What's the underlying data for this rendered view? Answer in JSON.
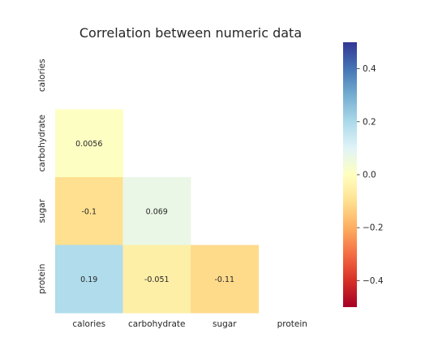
{
  "chart_data": {
    "type": "heatmap",
    "title": "Correlation between numeric data",
    "xlabel": "",
    "ylabel": "",
    "variables": [
      "calories",
      "carbohydrate",
      "sugar",
      "protein"
    ],
    "mask": "upper-triangle-including-diagonal",
    "cells": [
      {
        "row": "carbohydrate",
        "col": "calories",
        "value": 0.0056,
        "label": "0.0056"
      },
      {
        "row": "sugar",
        "col": "calories",
        "value": -0.1,
        "label": "-0.1"
      },
      {
        "row": "sugar",
        "col": "carbohydrate",
        "value": 0.069,
        "label": "0.069"
      },
      {
        "row": "protein",
        "col": "calories",
        "value": 0.19,
        "label": "0.19"
      },
      {
        "row": "protein",
        "col": "carbohydrate",
        "value": -0.051,
        "label": "-0.051"
      },
      {
        "row": "protein",
        "col": "sugar",
        "value": -0.11,
        "label": "-0.11"
      }
    ],
    "colormap": "RdYlBu",
    "vmin": -0.5,
    "vmax": 0.5,
    "colorbar_ticks": [
      0.4,
      0.2,
      0.0,
      -0.2,
      -0.4
    ],
    "colorbar_tick_labels": [
      "0.4",
      "0.2",
      "0.0",
      "−0.2",
      "−0.4"
    ],
    "grid": false,
    "legend": "colorbar-right"
  }
}
